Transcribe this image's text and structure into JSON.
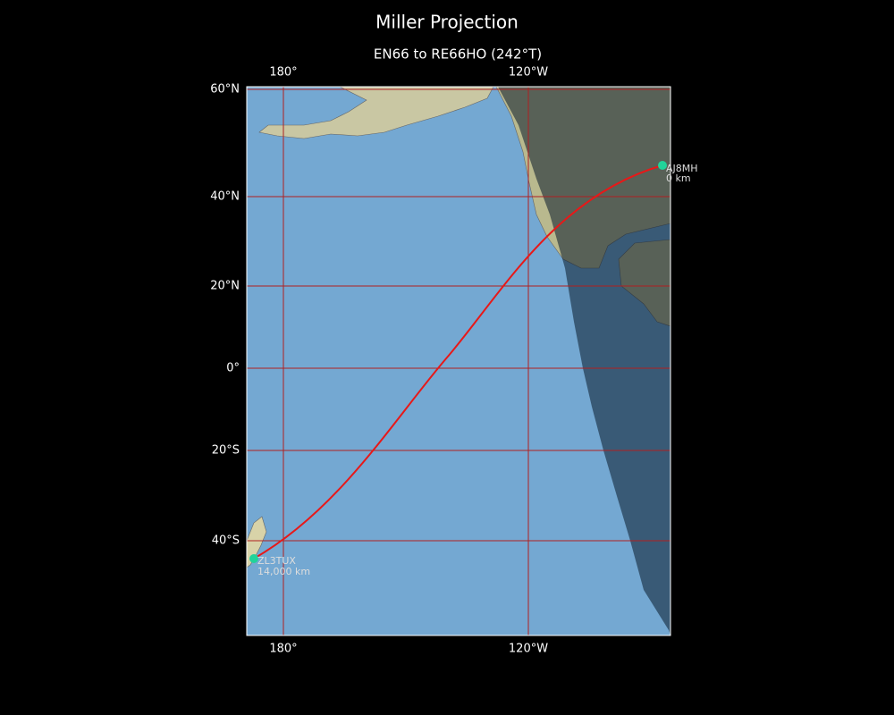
{
  "title": "Miller Projection",
  "subtitle": "EN66 to RE66HO (242°T)",
  "axes": {
    "top": [
      "180°",
      "120°W"
    ],
    "bottom": [
      "180°",
      "120°W"
    ],
    "left": [
      "60°N",
      "40°N",
      "20°N",
      "0°",
      "20°S",
      "40°S"
    ]
  },
  "stations": [
    {
      "call": "AJ8MH",
      "distance": "0 km"
    },
    {
      "call": "ZL3TUX",
      "distance": "14,000 km"
    }
  ]
}
